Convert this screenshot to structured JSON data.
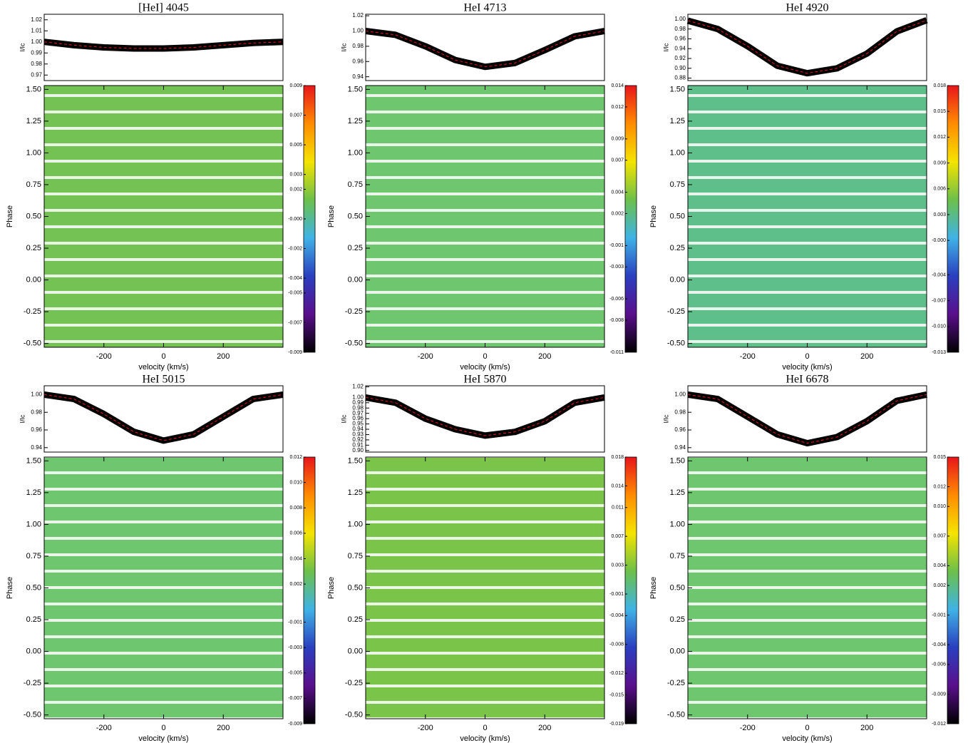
{
  "chart_data": [
    {
      "title": "[HeI] 4045",
      "profile": {
        "type": "line",
        "ylabel": "I/Ic",
        "xlim": [
          -400,
          400
        ],
        "ylim": [
          0.965,
          1.025
        ],
        "yticks": [
          1.02,
          1.01,
          {
            "value": 1.0,
            "label": "1.00"
          },
          0.99,
          0.98,
          0.97
        ],
        "x": [
          -400,
          -300,
          -200,
          -100,
          0,
          100,
          200,
          300,
          400
        ],
        "values": [
          1.0,
          0.997,
          0.995,
          0.994,
          0.994,
          0.995,
          0.997,
          0.999,
          1.0
        ],
        "color": "#000000",
        "mean_color": "#e8151b"
      },
      "dynamic": {
        "type": "heatmap",
        "xlabel": "velocity (km/s)",
        "ylabel": "Phase",
        "xlim": [
          -400,
          400
        ],
        "xticks": [
          -200,
          0,
          200
        ],
        "ylim": [
          -0.53,
          1.53
        ],
        "yticks": [
          {
            "value": -0.5,
            "label": "-0.50"
          },
          -0.25,
          {
            "value": 0,
            "label": "0.00"
          },
          0.25,
          {
            "value": 0.5,
            "label": "0.50"
          },
          0.75,
          {
            "value": 1,
            "label": "1.00"
          },
          1.25,
          {
            "value": 1.5,
            "label": "1.50"
          }
        ],
        "clim": [
          -0.009,
          0.009
        ],
        "cticks": [
          0.009,
          0.007,
          0.005,
          0.003,
          0.002,
          {
            "value": 0,
            "label": "-0.000"
          },
          -0.002,
          -0.004,
          -0.005,
          -0.007,
          -0.009
        ],
        "colormap": [
          "#000000",
          "#5a0f8c",
          "#2a3fbf",
          "#3fb3e6",
          "#6cc04a",
          "#f4e400",
          "#ff8c00",
          "#e8151b"
        ],
        "background": "#74c253"
      }
    },
    {
      "title": "HeI 4713",
      "profile": {
        "type": "line",
        "ylabel": "I/Ic",
        "xlim": [
          -400,
          400
        ],
        "ylim": [
          0.935,
          1.022
        ],
        "yticks": [
          1.02,
          {
            "value": 1.0,
            "label": "1.00"
          },
          0.98,
          0.96,
          0.94
        ],
        "x": [
          -400,
          -300,
          -200,
          -100,
          0,
          100,
          200,
          300,
          400
        ],
        "values": [
          1.0,
          0.995,
          0.98,
          0.962,
          0.953,
          0.958,
          0.975,
          0.993,
          1.0
        ],
        "color": "#000000",
        "mean_color": "#e8151b"
      },
      "dynamic": {
        "type": "heatmap",
        "xlabel": "velocity (km/s)",
        "ylabel": "Phase",
        "xlim": [
          -400,
          400
        ],
        "xticks": [
          -200,
          0,
          200
        ],
        "ylim": [
          -0.53,
          1.53
        ],
        "yticks": [
          {
            "value": -0.5,
            "label": "-0.50"
          },
          -0.25,
          {
            "value": 0,
            "label": "0.00"
          },
          0.25,
          {
            "value": 0.5,
            "label": "0.50"
          },
          0.75,
          {
            "value": 1,
            "label": "1.00"
          },
          1.25,
          {
            "value": 1.5,
            "label": "1.50"
          }
        ],
        "clim": [
          -0.011,
          0.014
        ],
        "cticks": [
          0.014,
          0.012,
          0.009,
          0.007,
          0.004,
          0.002,
          -0.001,
          -0.003,
          -0.006,
          -0.008,
          -0.011
        ],
        "colormap": [
          "#000000",
          "#5a0f8c",
          "#2a3fbf",
          "#3fb3e6",
          "#6cc04a",
          "#f4e400",
          "#ff8c00",
          "#e8151b"
        ],
        "background": "#6ec66e"
      }
    },
    {
      "title": "HeI 4920",
      "profile": {
        "type": "line",
        "ylabel": "I/Ic",
        "xlim": [
          -400,
          400
        ],
        "ylim": [
          0.875,
          1.01
        ],
        "yticks": [
          {
            "value": 1.0,
            "label": "1.00"
          },
          0.98,
          0.96,
          0.94,
          0.92,
          {
            "value": 0.9,
            "label": "0.90"
          },
          0.88
        ],
        "x": [
          -400,
          -300,
          -200,
          -100,
          0,
          100,
          200,
          300,
          400
        ],
        "values": [
          0.997,
          0.98,
          0.945,
          0.905,
          0.89,
          0.9,
          0.93,
          0.975,
          0.998
        ],
        "color": "#000000",
        "mean_color": "#e8151b"
      },
      "dynamic": {
        "type": "heatmap",
        "xlabel": "velocity (km/s)",
        "ylabel": "Phase",
        "xlim": [
          -400,
          400
        ],
        "xticks": [
          -200,
          0,
          200
        ],
        "ylim": [
          -0.53,
          1.53
        ],
        "yticks": [
          {
            "value": -0.5,
            "label": "-0.50"
          },
          -0.25,
          {
            "value": 0,
            "label": "0.00"
          },
          0.25,
          {
            "value": 0.5,
            "label": "0.50"
          },
          0.75,
          {
            "value": 1,
            "label": "1.00"
          },
          1.25,
          {
            "value": 1.5,
            "label": "1.50"
          }
        ],
        "clim": [
          -0.013,
          0.018
        ],
        "cticks": [
          0.018,
          0.015,
          0.012,
          0.009,
          0.006,
          0.003,
          {
            "value": 0,
            "label": "-0.000"
          },
          -0.004,
          -0.007,
          {
            "value": -0.01,
            "label": "-0.010"
          },
          -0.013
        ],
        "colormap": [
          "#000000",
          "#5a0f8c",
          "#2a3fbf",
          "#3fb3e6",
          "#6cc04a",
          "#f4e400",
          "#ff8c00",
          "#e8151b"
        ],
        "background": "#5fbf8a"
      }
    },
    {
      "title": "HeI 5015",
      "profile": {
        "type": "line",
        "ylabel": "I/Ic",
        "xlim": [
          -400,
          400
        ],
        "ylim": [
          0.935,
          1.01
        ],
        "yticks": [
          {
            "value": 1.0,
            "label": "1.00"
          },
          0.98,
          0.96,
          0.94
        ],
        "x": [
          -400,
          -300,
          -200,
          -100,
          0,
          100,
          200,
          300,
          400
        ],
        "values": [
          1.0,
          0.995,
          0.978,
          0.958,
          0.948,
          0.955,
          0.975,
          0.995,
          1.0
        ],
        "color": "#000000",
        "mean_color": "#e8151b"
      },
      "dynamic": {
        "type": "heatmap",
        "xlabel": "velocity (km/s)",
        "ylabel": "Phase",
        "xlim": [
          -400,
          400
        ],
        "xticks": [
          -200,
          0,
          200
        ],
        "ylim": [
          -0.53,
          1.53
        ],
        "yticks": [
          {
            "value": -0.5,
            "label": "-0.50"
          },
          -0.25,
          {
            "value": 0,
            "label": "0.00"
          },
          0.25,
          {
            "value": 0.5,
            "label": "0.50"
          },
          0.75,
          {
            "value": 1,
            "label": "1.00"
          },
          1.25,
          {
            "value": 1.5,
            "label": "1.50"
          }
        ],
        "clim": [
          -0.009,
          0.012
        ],
        "cticks": [
          0.012,
          {
            "value": 0.01,
            "label": "0.010"
          },
          0.008,
          0.006,
          0.004,
          0.002,
          -0.001,
          -0.003,
          -0.005,
          -0.007,
          -0.009
        ],
        "colormap": [
          "#000000",
          "#5a0f8c",
          "#2a3fbf",
          "#3fb3e6",
          "#6cc04a",
          "#f4e400",
          "#ff8c00",
          "#e8151b"
        ],
        "background": "#6ec66e"
      }
    },
    {
      "title": "HeI 5870",
      "profile": {
        "type": "line",
        "ylabel": "I/Ic",
        "xlim": [
          -400,
          400
        ],
        "ylim": [
          0.897,
          1.022
        ],
        "yticks": [
          1.02,
          {
            "value": 1.0,
            "label": "1.00"
          },
          0.99,
          0.98,
          0.97,
          0.96,
          0.95,
          0.94,
          0.93,
          0.92,
          0.91,
          {
            "value": 0.9,
            "label": "0.90"
          }
        ],
        "x": [
          -400,
          -300,
          -200,
          -100,
          0,
          100,
          200,
          300,
          400
        ],
        "values": [
          1.0,
          0.99,
          0.96,
          0.94,
          0.928,
          0.935,
          0.955,
          0.99,
          1.0
        ],
        "color": "#000000",
        "mean_color": "#e8151b"
      },
      "dynamic": {
        "type": "heatmap",
        "xlabel": "velocity (km/s)",
        "ylabel": "Phase",
        "xlim": [
          -400,
          400
        ],
        "xticks": [
          -200,
          0,
          200
        ],
        "ylim": [
          -0.53,
          1.53
        ],
        "yticks": [
          {
            "value": -0.5,
            "label": "-0.50"
          },
          -0.25,
          {
            "value": 0,
            "label": "0.00"
          },
          0.25,
          {
            "value": 0.5,
            "label": "0.50"
          },
          0.75,
          {
            "value": 1,
            "label": "1.00"
          },
          1.25,
          {
            "value": 1.5,
            "label": "1.50"
          }
        ],
        "clim": [
          -0.019,
          0.018
        ],
        "cticks": [
          0.018,
          0.014,
          0.011,
          0.007,
          0.003,
          -0.001,
          -0.004,
          -0.008,
          -0.012,
          -0.015,
          -0.019
        ],
        "colormap": [
          "#000000",
          "#5a0f8c",
          "#2a3fbf",
          "#3fb3e6",
          "#6cc04a",
          "#f4e400",
          "#ff8c00",
          "#e8151b"
        ],
        "background": "#7ac44a"
      }
    },
    {
      "title": "HeI 6678",
      "profile": {
        "type": "line",
        "ylabel": "I/Ic",
        "xlim": [
          -400,
          400
        ],
        "ylim": [
          0.935,
          1.01
        ],
        "yticks": [
          {
            "value": 1.0,
            "label": "1.00"
          },
          0.98,
          0.96,
          0.94
        ],
        "x": [
          -400,
          -300,
          -200,
          -100,
          0,
          100,
          200,
          300,
          400
        ],
        "values": [
          1.0,
          0.995,
          0.975,
          0.955,
          0.945,
          0.952,
          0.97,
          0.993,
          1.0
        ],
        "color": "#000000",
        "mean_color": "#e8151b"
      },
      "dynamic": {
        "type": "heatmap",
        "xlabel": "velocity (km/s)",
        "ylabel": "Phase",
        "xlim": [
          -400,
          400
        ],
        "xticks": [
          -200,
          0,
          200
        ],
        "ylim": [
          -0.53,
          1.53
        ],
        "yticks": [
          {
            "value": -0.5,
            "label": "-0.50"
          },
          -0.25,
          {
            "value": 0,
            "label": "0.00"
          },
          0.25,
          {
            "value": 0.5,
            "label": "0.50"
          },
          0.75,
          {
            "value": 1,
            "label": "1.00"
          },
          1.25,
          {
            "value": 1.5,
            "label": "1.50"
          }
        ],
        "clim": [
          -0.012,
          0.015
        ],
        "cticks": [
          0.015,
          0.012,
          {
            "value": 0.01,
            "label": "0.010"
          },
          0.007,
          0.004,
          0.002,
          -0.001,
          -0.004,
          -0.006,
          -0.009,
          -0.012
        ],
        "colormap": [
          "#000000",
          "#5a0f8c",
          "#2a3fbf",
          "#3fb3e6",
          "#6cc04a",
          "#f4e400",
          "#ff8c00",
          "#e8151b"
        ],
        "background": "#6ec66e"
      }
    }
  ]
}
